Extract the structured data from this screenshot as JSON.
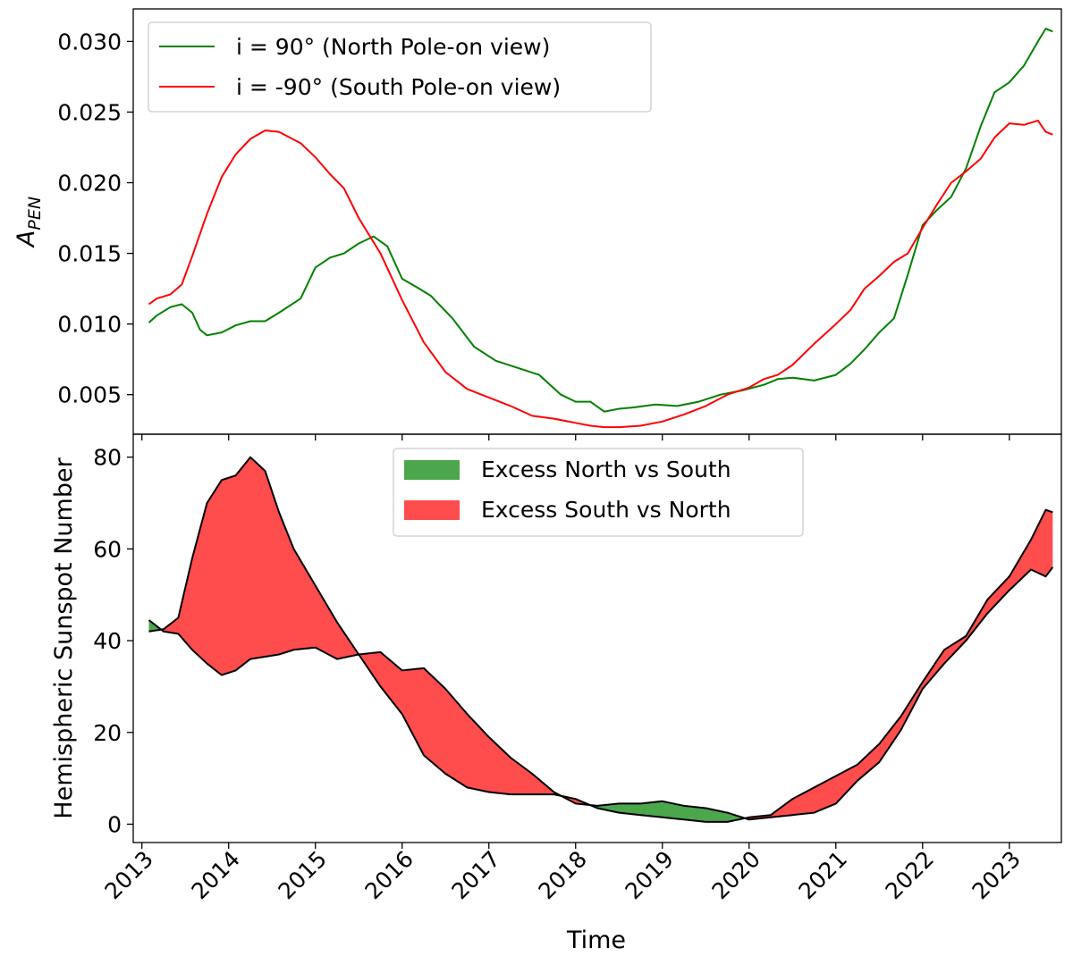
{
  "chart_data": [
    {
      "type": "line",
      "title": "",
      "xlabel": "",
      "ylabel": "A_PEN",
      "ylabel_main": "A",
      "ylabel_sub": "PEN",
      "xlim": [
        2012.9,
        2023.6
      ],
      "ylim": [
        0.0022,
        0.0323
      ],
      "yticks": [
        0.005,
        0.01,
        0.015,
        0.02,
        0.025,
        0.03
      ],
      "ytick_labels": [
        "0.005",
        "0.010",
        "0.015",
        "0.020",
        "0.025",
        "0.030"
      ],
      "grid": false,
      "legend_position": "top-left",
      "series": [
        {
          "name": "i = 90° (North Pole-on view)",
          "color": "#008000",
          "x": [
            2013.08,
            2013.17,
            2013.33,
            2013.46,
            2013.58,
            2013.67,
            2013.75,
            2013.92,
            2014.08,
            2014.25,
            2014.42,
            2014.58,
            2014.83,
            2015.0,
            2015.17,
            2015.33,
            2015.5,
            2015.67,
            2015.83,
            2016.0,
            2016.17,
            2016.33,
            2016.58,
            2016.83,
            2017.08,
            2017.33,
            2017.58,
            2017.83,
            2018.0,
            2018.17,
            2018.33,
            2018.5,
            2018.67,
            2018.92,
            2019.17,
            2019.42,
            2019.67,
            2019.92,
            2020.17,
            2020.33,
            2020.5,
            2020.75,
            2021.0,
            2021.17,
            2021.33,
            2021.5,
            2021.67,
            2021.83,
            2022.0,
            2022.17,
            2022.33,
            2022.5,
            2022.67,
            2022.83,
            2023.0,
            2023.17,
            2023.33,
            2023.42,
            2023.5
          ],
          "y": [
            0.0101,
            0.0106,
            0.0112,
            0.0114,
            0.0108,
            0.0096,
            0.0092,
            0.0094,
            0.0099,
            0.0102,
            0.0102,
            0.0108,
            0.0118,
            0.014,
            0.0147,
            0.015,
            0.0157,
            0.0162,
            0.0155,
            0.0132,
            0.0126,
            0.012,
            0.0104,
            0.0084,
            0.0074,
            0.0069,
            0.0064,
            0.005,
            0.0045,
            0.0045,
            0.0038,
            0.004,
            0.0041,
            0.0043,
            0.0042,
            0.0045,
            0.005,
            0.0053,
            0.0057,
            0.0061,
            0.0062,
            0.006,
            0.0064,
            0.0072,
            0.0082,
            0.0094,
            0.0104,
            0.0135,
            0.017,
            0.0181,
            0.019,
            0.021,
            0.024,
            0.0264,
            0.0271,
            0.0283,
            0.03,
            0.0309,
            0.0307
          ]
        },
        {
          "name": "i = -90° (South Pole-on view)",
          "color": "#ff0000",
          "x": [
            2013.08,
            2013.17,
            2013.33,
            2013.46,
            2013.58,
            2013.75,
            2013.92,
            2014.08,
            2014.25,
            2014.42,
            2014.58,
            2014.83,
            2015.0,
            2015.17,
            2015.33,
            2015.5,
            2015.75,
            2016.0,
            2016.25,
            2016.5,
            2016.75,
            2017.0,
            2017.25,
            2017.5,
            2017.75,
            2018.0,
            2018.17,
            2018.33,
            2018.5,
            2018.75,
            2019.0,
            2019.25,
            2019.5,
            2019.75,
            2020.0,
            2020.17,
            2020.33,
            2020.5,
            2020.75,
            2021.0,
            2021.17,
            2021.33,
            2021.5,
            2021.67,
            2021.83,
            2022.0,
            2022.17,
            2022.33,
            2022.5,
            2022.67,
            2022.83,
            2023.0,
            2023.17,
            2023.33,
            2023.42,
            2023.5
          ],
          "y": [
            0.0114,
            0.0118,
            0.0121,
            0.0128,
            0.0148,
            0.0178,
            0.0204,
            0.022,
            0.0231,
            0.0237,
            0.0236,
            0.0228,
            0.0218,
            0.0206,
            0.0196,
            0.0175,
            0.015,
            0.0117,
            0.0087,
            0.0066,
            0.0054,
            0.0048,
            0.0042,
            0.0035,
            0.0033,
            0.003,
            0.0028,
            0.0027,
            0.0027,
            0.0028,
            0.0031,
            0.0036,
            0.0042,
            0.005,
            0.0055,
            0.0061,
            0.0064,
            0.0071,
            0.0086,
            0.01,
            0.011,
            0.0125,
            0.0134,
            0.0144,
            0.015,
            0.0168,
            0.0185,
            0.02,
            0.0208,
            0.0217,
            0.0232,
            0.0242,
            0.0241,
            0.0244,
            0.0236,
            0.0234
          ]
        }
      ]
    },
    {
      "type": "area",
      "title": "",
      "xlabel": "Time",
      "ylabel": "Hemispheric Sunspot Number",
      "xlim": [
        2012.9,
        2023.6
      ],
      "ylim": [
        -4,
        85
      ],
      "yticks": [
        0,
        20,
        40,
        60,
        80
      ],
      "ytick_labels": [
        "0",
        "20",
        "40",
        "60",
        "80"
      ],
      "xticks": [
        2013,
        2014,
        2015,
        2016,
        2017,
        2018,
        2019,
        2020,
        2021,
        2022,
        2023
      ],
      "xtick_labels": [
        "2013",
        "2014",
        "2015",
        "2016",
        "2017",
        "2018",
        "2019",
        "2020",
        "2021",
        "2022",
        "2023"
      ],
      "grid": false,
      "legend_position": "top-center",
      "x": [
        2013.08,
        2013.25,
        2013.42,
        2013.58,
        2013.75,
        2013.92,
        2014.08,
        2014.25,
        2014.42,
        2014.58,
        2014.75,
        2015.0,
        2015.25,
        2015.5,
        2015.75,
        2016.0,
        2016.25,
        2016.5,
        2016.75,
        2017.0,
        2017.25,
        2017.5,
        2017.75,
        2018.0,
        2018.25,
        2018.5,
        2018.75,
        2019.0,
        2019.25,
        2019.5,
        2019.75,
        2020.0,
        2020.25,
        2020.5,
        2020.75,
        2021.0,
        2021.25,
        2021.5,
        2021.75,
        2022.0,
        2022.25,
        2022.5,
        2022.75,
        2023.0,
        2023.25,
        2023.42,
        2023.5
      ],
      "north": [
        44.5,
        42.0,
        41.5,
        38.0,
        35.0,
        32.5,
        33.5,
        36.0,
        36.5,
        37.0,
        38.0,
        38.5,
        36.0,
        37.0,
        37.5,
        33.5,
        34.0,
        29.5,
        24.0,
        19.0,
        14.5,
        11.0,
        7.0,
        4.5,
        4.0,
        4.5,
        4.5,
        5.0,
        4.0,
        3.5,
        2.5,
        1.0,
        1.5,
        2.0,
        2.5,
        4.5,
        9.5,
        13.5,
        20.5,
        29.5,
        35.0,
        40.0,
        46.0,
        51.0,
        55.5,
        54.0,
        56.0
      ],
      "south": [
        42.0,
        42.5,
        45.0,
        58.0,
        70.0,
        75.0,
        76.0,
        80.0,
        77.0,
        68.0,
        60.0,
        52.0,
        44.0,
        37.0,
        30.0,
        24.0,
        15.0,
        11.0,
        8.0,
        7.0,
        6.5,
        6.5,
        6.5,
        5.5,
        3.5,
        2.5,
        2.0,
        1.5,
        1.0,
        0.5,
        0.5,
        1.5,
        2.0,
        5.5,
        8.0,
        10.5,
        13.0,
        17.5,
        23.5,
        31.0,
        38.0,
        41.0,
        49.0,
        54.0,
        62.0,
        68.5,
        68.0
      ],
      "series": [
        {
          "name": "Excess North vs South",
          "color": "#4ca64c"
        },
        {
          "name": "Excess South vs North",
          "color": "#ff4c4c"
        }
      ]
    }
  ]
}
